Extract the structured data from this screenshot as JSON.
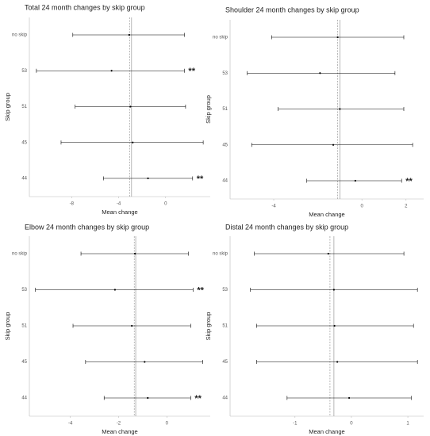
{
  "chart_data": [
    {
      "type": "forest",
      "title": "Total 24 month changes by skip group",
      "xlabel": "Mean change",
      "ylabel": "Skip group",
      "categories": [
        "no skip",
        "53",
        "51",
        "45",
        "44"
      ],
      "mean": [
        -3.1,
        -4.6,
        -3.0,
        -2.8,
        -1.5
      ],
      "lower": [
        -7.9,
        -11.0,
        -7.7,
        -8.9,
        -5.3
      ],
      "upper": [
        1.6,
        1.6,
        1.7,
        3.2,
        2.3
      ],
      "annotations": [
        {
          "text": "**",
          "category": "53"
        },
        {
          "text": "**",
          "category": "44"
        }
      ],
      "vlines": [
        {
          "value": -3.05,
          "style": "dashed"
        },
        {
          "value": -2.9,
          "style": "solid"
        }
      ],
      "xlim": [
        -11.6,
        3.8
      ],
      "xticks": [
        -8,
        -4,
        0
      ],
      "color": "#000000"
    },
    {
      "type": "forest",
      "title": "Shoulder 24 month changes by skip group",
      "xlabel": "Mean change",
      "ylabel": "Skip group",
      "categories": [
        "no skip",
        "53",
        "51",
        "45",
        "44"
      ],
      "mean": [
        -1.1,
        -1.9,
        -1.0,
        -1.3,
        -0.3
      ],
      "lower": [
        -4.1,
        -5.2,
        -3.8,
        -5.0,
        -2.5
      ],
      "upper": [
        1.9,
        1.5,
        1.9,
        2.3,
        1.8
      ],
      "annotations": [
        {
          "text": "**",
          "category": "44"
        }
      ],
      "vlines": [
        {
          "value": -1.1,
          "style": "dashed"
        },
        {
          "value": -1.0,
          "style": "solid"
        }
      ],
      "xlim": [
        -5.98,
        2.8
      ],
      "xticks": [
        -4,
        0,
        2
      ],
      "color": "#000000"
    },
    {
      "type": "forest",
      "title": "Elbow 24 month changes by skip group",
      "xlabel": "Mean change",
      "ylabel": "Skip group",
      "categories": [
        "no skip",
        "53",
        "51",
        "45",
        "44"
      ],
      "mean": [
        -1.32,
        -2.15,
        -1.45,
        -0.92,
        -0.79
      ],
      "lower": [
        -3.56,
        -5.45,
        -3.89,
        -3.37,
        -2.6
      ],
      "upper": [
        0.89,
        1.09,
        0.99,
        1.49,
        0.99
      ],
      "annotations": [
        {
          "text": "**",
          "category": "53"
        },
        {
          "text": "**",
          "category": "44"
        }
      ],
      "vlines": [
        {
          "value": -1.35,
          "style": "dashed"
        },
        {
          "value": -1.29,
          "style": "solid"
        }
      ],
      "xlim": [
        -5.7,
        1.8
      ],
      "xticks": [
        -4,
        -2,
        0
      ],
      "color": "#000000"
    },
    {
      "type": "forest",
      "title": "Distal 24 month changes by skip group",
      "xlabel": "Mean change",
      "ylabel": "Skip group",
      "categories": [
        "no skip",
        "53",
        "51",
        "45",
        "44"
      ],
      "mean": [
        -0.41,
        -0.31,
        -0.3,
        -0.25,
        -0.04
      ],
      "lower": [
        -1.72,
        -1.79,
        -1.68,
        -1.68,
        -1.14
      ],
      "upper": [
        0.93,
        1.17,
        1.1,
        1.17,
        1.06
      ],
      "annotations": [],
      "vlines": [
        {
          "value": -0.38,
          "style": "dashed"
        },
        {
          "value": -0.31,
          "style": "solid"
        }
      ],
      "xlim": [
        -2.15,
        1.28
      ],
      "xticks": [
        -1,
        0,
        1
      ],
      "color": "#000000"
    }
  ]
}
